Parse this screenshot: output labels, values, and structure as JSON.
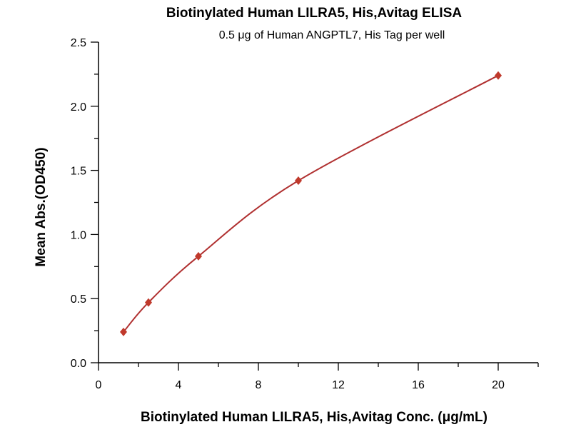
{
  "chart_data": {
    "type": "line",
    "title": "Biotinylated Human LILRA5, His,Avitag ELISA",
    "subtitle": "0.5 μg of Human ANGPTL7, His Tag per well",
    "xlabel": "Biotinylated Human LILRA5, His,Avitag Conc. (μg/mL)",
    "ylabel": "Mean Abs.(OD450)",
    "xlim": [
      0,
      22
    ],
    "ylim": [
      0,
      2.5
    ],
    "xticks": [
      0,
      4,
      8,
      12,
      16,
      20
    ],
    "yticks": [
      0.0,
      0.5,
      1.0,
      1.5,
      2.0,
      2.5
    ],
    "ytick_labels": [
      "0.0",
      "0.5",
      "1.0",
      "1.5",
      "2.0",
      "2.5"
    ],
    "grid": false,
    "series": [
      {
        "x": [
          1.25,
          2.5,
          5,
          10,
          20
        ],
        "y": [
          0.24,
          0.47,
          0.83,
          1.42,
          2.24
        ],
        "color": "#c0392b",
        "line_color": "#b03030",
        "marker": "diamond",
        "fitted_curve": true
      }
    ]
  }
}
